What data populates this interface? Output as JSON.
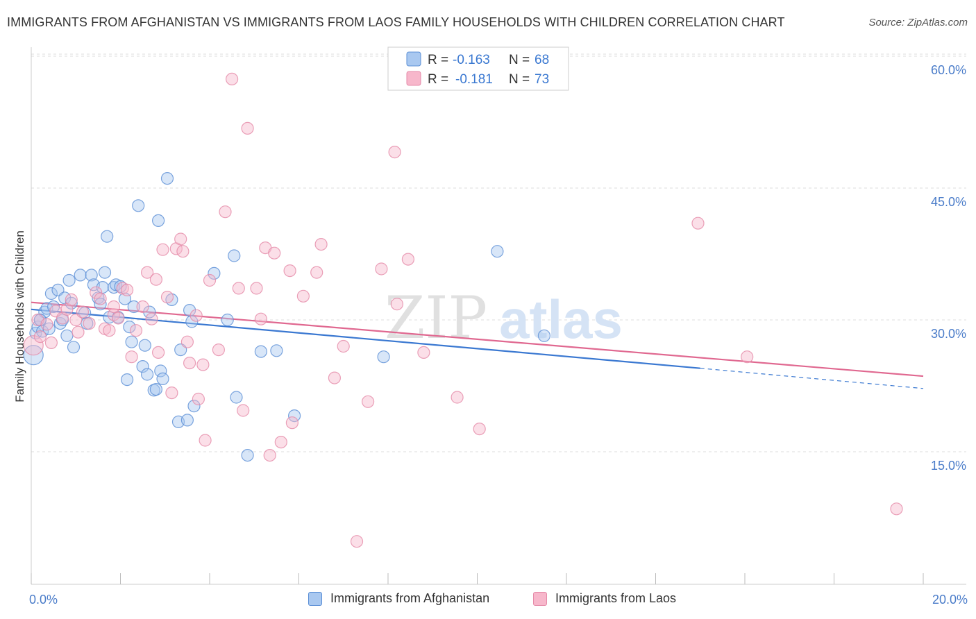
{
  "header": {
    "title": "IMMIGRANTS FROM AFGHANISTAN VS IMMIGRANTS FROM LAOS FAMILY HOUSEHOLDS WITH CHILDREN CORRELATION CHART",
    "source": "Source: ZipAtlas.com"
  },
  "watermark": {
    "zip": "ZIP",
    "atlas": "atlas"
  },
  "colors": {
    "afghanistan_fill": "#a9c8f0",
    "afghanistan_stroke": "#5b8fd6",
    "afghanistan_line": "#3a78d1",
    "laos_fill": "#f7b7cb",
    "laos_stroke": "#e58aa8",
    "laos_line": "#e06890",
    "tick_label": "#4a7cc9",
    "grid": "#dddddd"
  },
  "legend_top": {
    "rows": [
      {
        "r_label": "R = ",
        "r_value": "-0.163",
        "n_label": "N = ",
        "n_value": "68"
      },
      {
        "r_label": "R = ",
        "r_value": "-0.181",
        "n_label": "N = ",
        "n_value": "73"
      }
    ]
  },
  "chart_data": {
    "type": "scatter",
    "title": "IMMIGRANTS FROM AFGHANISTAN VS IMMIGRANTS FROM LAOS FAMILY HOUSEHOLDS WITH CHILDREN CORRELATION CHART",
    "xlabel": "",
    "ylabel": "Family Households with Children",
    "xlim": [
      0,
      20
    ],
    "ylim": [
      0,
      62
    ],
    "x_tick_labels": [
      "0.0%",
      "20.0%"
    ],
    "y_ticks": [
      15,
      30,
      45,
      60
    ],
    "y_tick_labels": [
      "15.0%",
      "30.0%",
      "45.0%",
      "60.0%"
    ],
    "grid": true,
    "legend_placement": "top-center",
    "series": [
      {
        "name": "Immigrants from Afghanistan",
        "r": -0.163,
        "n": 68,
        "trend": {
          "x0": 0,
          "y0": 31.2,
          "x1": 15,
          "y1": 24.5,
          "dash_to_x": 20,
          "dash_to_y": 22.2
        },
        "points": [
          [
            0.05,
            26.0
          ],
          [
            0.1,
            28.5
          ],
          [
            0.15,
            29.2
          ],
          [
            0.2,
            30.0
          ],
          [
            0.25,
            28.7
          ],
          [
            0.3,
            30.9
          ],
          [
            0.35,
            31.3
          ],
          [
            0.4,
            29.0
          ],
          [
            0.45,
            33.0
          ],
          [
            0.5,
            31.5
          ],
          [
            0.6,
            33.4
          ],
          [
            0.65,
            29.6
          ],
          [
            0.7,
            30.0
          ],
          [
            0.75,
            32.5
          ],
          [
            0.8,
            28.2
          ],
          [
            0.85,
            34.5
          ],
          [
            0.9,
            31.9
          ],
          [
            0.95,
            26.9
          ],
          [
            1.1,
            35.1
          ],
          [
            1.2,
            30.8
          ],
          [
            1.25,
            29.6
          ],
          [
            1.35,
            35.1
          ],
          [
            1.4,
            34.0
          ],
          [
            1.5,
            32.5
          ],
          [
            1.55,
            31.8
          ],
          [
            1.6,
            33.7
          ],
          [
            1.65,
            35.4
          ],
          [
            1.7,
            39.5
          ],
          [
            1.75,
            30.3
          ],
          [
            1.85,
            33.7
          ],
          [
            1.9,
            34.0
          ],
          [
            1.95,
            30.3
          ],
          [
            2.0,
            33.8
          ],
          [
            2.1,
            32.4
          ],
          [
            2.15,
            23.2
          ],
          [
            2.2,
            29.2
          ],
          [
            2.25,
            27.5
          ],
          [
            2.3,
            31.5
          ],
          [
            2.4,
            43.0
          ],
          [
            2.5,
            24.7
          ],
          [
            2.55,
            27.1
          ],
          [
            2.6,
            23.8
          ],
          [
            2.65,
            30.9
          ],
          [
            2.75,
            22.0
          ],
          [
            2.8,
            22.1
          ],
          [
            2.85,
            41.3
          ],
          [
            2.9,
            24.2
          ],
          [
            2.95,
            23.3
          ],
          [
            3.05,
            46.1
          ],
          [
            3.15,
            32.3
          ],
          [
            3.3,
            18.4
          ],
          [
            3.35,
            26.6
          ],
          [
            3.5,
            18.6
          ],
          [
            3.55,
            31.1
          ],
          [
            3.6,
            29.8
          ],
          [
            3.65,
            20.2
          ],
          [
            4.1,
            35.3
          ],
          [
            4.4,
            30.0
          ],
          [
            4.55,
            37.3
          ],
          [
            4.6,
            21.2
          ],
          [
            4.85,
            14.6
          ],
          [
            5.15,
            26.4
          ],
          [
            5.5,
            26.5
          ],
          [
            5.9,
            19.1
          ],
          [
            7.9,
            25.8
          ],
          [
            10.45,
            37.8
          ],
          [
            11.5,
            28.2
          ],
          [
            0.2,
            30.0
          ]
        ]
      },
      {
        "name": "Immigrants from Laos",
        "r": -0.181,
        "n": 73,
        "trend": {
          "x0": 0,
          "y0": 32.0,
          "x1": 20,
          "y1": 23.6
        },
        "points": [
          [
            0.05,
            27.1
          ],
          [
            0.15,
            30.0
          ],
          [
            0.2,
            28.1
          ],
          [
            0.35,
            29.5
          ],
          [
            0.45,
            27.4
          ],
          [
            0.55,
            31.0
          ],
          [
            0.7,
            30.2
          ],
          [
            0.8,
            31.2
          ],
          [
            0.9,
            32.3
          ],
          [
            1.0,
            30.0
          ],
          [
            1.05,
            28.6
          ],
          [
            1.15,
            30.9
          ],
          [
            1.3,
            29.6
          ],
          [
            1.45,
            33.1
          ],
          [
            1.55,
            32.4
          ],
          [
            1.65,
            29.0
          ],
          [
            1.75,
            28.8
          ],
          [
            1.85,
            30.6
          ],
          [
            1.95,
            30.2
          ],
          [
            2.05,
            33.6
          ],
          [
            2.15,
            33.4
          ],
          [
            2.25,
            25.8
          ],
          [
            2.35,
            28.8
          ],
          [
            2.5,
            31.5
          ],
          [
            2.6,
            35.4
          ],
          [
            2.7,
            30.1
          ],
          [
            2.8,
            34.6
          ],
          [
            2.85,
            26.3
          ],
          [
            2.95,
            38.0
          ],
          [
            3.05,
            32.6
          ],
          [
            3.15,
            21.7
          ],
          [
            3.25,
            38.1
          ],
          [
            3.35,
            39.2
          ],
          [
            3.4,
            37.8
          ],
          [
            3.5,
            27.5
          ],
          [
            3.55,
            25.1
          ],
          [
            3.7,
            30.5
          ],
          [
            3.75,
            21.0
          ],
          [
            3.85,
            24.9
          ],
          [
            3.9,
            16.3
          ],
          [
            4.0,
            34.5
          ],
          [
            4.2,
            26.6
          ],
          [
            4.35,
            42.3
          ],
          [
            4.5,
            57.4
          ],
          [
            4.65,
            33.6
          ],
          [
            4.75,
            19.7
          ],
          [
            4.85,
            51.8
          ],
          [
            5.05,
            33.6
          ],
          [
            5.15,
            30.1
          ],
          [
            5.25,
            38.2
          ],
          [
            5.35,
            14.6
          ],
          [
            5.45,
            37.6
          ],
          [
            5.6,
            16.1
          ],
          [
            5.8,
            35.6
          ],
          [
            5.85,
            18.3
          ],
          [
            6.1,
            32.7
          ],
          [
            6.4,
            35.4
          ],
          [
            6.5,
            38.6
          ],
          [
            6.8,
            23.4
          ],
          [
            7.0,
            27.0
          ],
          [
            7.3,
            4.8
          ],
          [
            7.55,
            20.7
          ],
          [
            7.85,
            35.8
          ],
          [
            8.15,
            49.1
          ],
          [
            8.2,
            31.8
          ],
          [
            8.45,
            36.9
          ],
          [
            8.8,
            26.3
          ],
          [
            9.55,
            21.2
          ],
          [
            10.05,
            17.6
          ],
          [
            14.95,
            41.0
          ],
          [
            16.05,
            25.8
          ],
          [
            19.4,
            8.5
          ],
          [
            1.85,
            31.5
          ]
        ]
      }
    ]
  }
}
